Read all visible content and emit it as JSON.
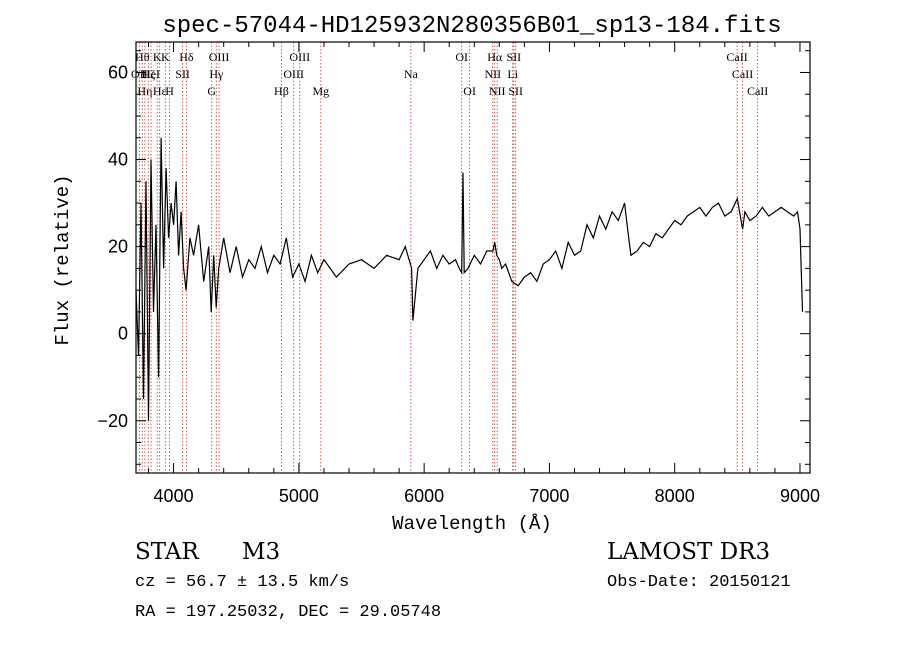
{
  "chart_data": {
    "type": "line",
    "title": "spec-57044-HD125932N280356B01_sp13-184.fits",
    "xlabel": "Wavelength (Å)",
    "ylabel": "Flux (relative)",
    "xlim": [
      3700,
      9080
    ],
    "ylim": [
      -32,
      67
    ],
    "grid": false,
    "x_ticks": [
      4000,
      5000,
      6000,
      7000,
      8000,
      9000
    ],
    "y_ticks": [
      -20,
      0,
      20,
      40,
      60
    ],
    "x_tick_labels": [
      "4000",
      "5000",
      "6000",
      "7000",
      "8000",
      "9000"
    ],
    "y_tick_labels": [
      "−20",
      "0",
      "20",
      "40",
      "60"
    ],
    "series": [
      {
        "x": [
          3700,
          3720,
          3740,
          3760,
          3780,
          3800,
          3820,
          3840,
          3860,
          3880,
          3900,
          3920,
          3940,
          3960,
          3980,
          4000,
          4020,
          4040,
          4060,
          4080,
          4100,
          4130,
          4160,
          4200,
          4240,
          4280,
          4300,
          4320,
          4340,
          4360,
          4400,
          4450,
          4500,
          4550,
          4600,
          4650,
          4700,
          4750,
          4800,
          4850,
          4900,
          4950,
          5000,
          5050,
          5100,
          5150,
          5200,
          5250,
          5300,
          5400,
          5500,
          5600,
          5700,
          5800,
          5850,
          5900,
          5910,
          5950,
          6000,
          6050,
          6100,
          6150,
          6200,
          6250,
          6280,
          6300,
          6310,
          6320,
          6350,
          6400,
          6450,
          6500,
          6550,
          6563,
          6580,
          6600,
          6620,
          6650,
          6700,
          6750,
          6800,
          6850,
          6900,
          6950,
          7000,
          7050,
          7100,
          7150,
          7200,
          7250,
          7300,
          7350,
          7400,
          7450,
          7500,
          7550,
          7600,
          7620,
          7650,
          7700,
          7750,
          7800,
          7850,
          7900,
          7950,
          8000,
          8050,
          8100,
          8150,
          8200,
          8250,
          8300,
          8350,
          8400,
          8450,
          8500,
          8542,
          8560,
          8600,
          8650,
          8700,
          8750,
          8800,
          8850,
          8900,
          8950,
          8980,
          9000,
          9020
        ],
        "y": [
          10,
          -5,
          30,
          -15,
          35,
          -20,
          40,
          5,
          25,
          -10,
          45,
          15,
          38,
          22,
          30,
          25,
          35,
          18,
          28,
          15,
          10,
          22,
          18,
          25,
          12,
          20,
          5,
          18,
          6,
          15,
          22,
          14,
          20,
          13,
          17,
          15,
          20,
          14,
          18,
          16,
          22,
          13,
          16,
          12,
          18,
          14,
          17,
          15,
          13,
          16,
          17,
          15,
          18,
          17,
          20,
          15,
          3,
          15,
          17,
          19,
          15,
          18,
          16,
          17,
          15,
          14,
          37,
          14,
          15,
          18,
          16,
          19,
          19,
          21,
          18,
          17,
          15,
          16,
          12,
          11,
          13,
          14,
          12,
          16,
          17,
          19,
          15,
          21,
          18,
          19,
          25,
          22,
          27,
          24,
          28,
          26,
          30,
          25,
          18,
          19,
          21,
          20,
          23,
          22,
          24,
          26,
          25,
          27,
          28,
          29,
          27,
          29,
          30,
          27,
          28,
          31,
          24,
          28,
          26,
          27,
          29,
          27,
          28,
          29,
          28,
          27,
          28,
          24,
          5
        ]
      }
    ],
    "line_annotations": [
      {
        "wave": 3727,
        "label": "OII",
        "row": 2
      },
      {
        "wave": 3750,
        "label": "Hθ",
        "row": 1
      },
      {
        "wave": 3771,
        "label": "Hη",
        "row": 3
      },
      {
        "wave": 3798,
        "label": "Hζ",
        "row": 2
      },
      {
        "wave": 3820,
        "label": "HeI",
        "row": 2
      },
      {
        "wave": 3869,
        "label": "K",
        "row": 1
      },
      {
        "wave": 3889,
        "label": "Hε",
        "row": 3
      },
      {
        "wave": 3934,
        "label": "K",
        "row": 1
      },
      {
        "wave": 3968,
        "label": "H",
        "row": 3
      },
      {
        "wave": 4072,
        "label": "SII",
        "row": 2
      },
      {
        "wave": 4102,
        "label": "Hδ",
        "row": 1
      },
      {
        "wave": 4304,
        "label": "G",
        "row": 3
      },
      {
        "wave": 4341,
        "label": "Hγ",
        "row": 2
      },
      {
        "wave": 4363,
        "label": "OIII",
        "row": 1
      },
      {
        "wave": 4861,
        "label": "Hβ",
        "row": 3
      },
      {
        "wave": 4959,
        "label": "OIII",
        "row": 2
      },
      {
        "wave": 5007,
        "label": "OIII",
        "row": 1
      },
      {
        "wave": 5175,
        "label": "Mg",
        "row": 3
      },
      {
        "wave": 5894,
        "label": "Na",
        "row": 2
      },
      {
        "wave": 6300,
        "label": "OI",
        "row": 1
      },
      {
        "wave": 6363,
        "label": "OI",
        "row": 3
      },
      {
        "wave": 6548,
        "label": "NII",
        "row": 2
      },
      {
        "wave": 6563,
        "label": "Hα",
        "row": 1
      },
      {
        "wave": 6583,
        "label": "NII",
        "row": 3
      },
      {
        "wave": 6707,
        "label": "Li",
        "row": 2
      },
      {
        "wave": 6716,
        "label": "SII",
        "row": 1
      },
      {
        "wave": 6731,
        "label": "SII",
        "row": 3
      },
      {
        "wave": 8498,
        "label": "CaII",
        "row": 1
      },
      {
        "wave": 8542,
        "label": "CaII",
        "row": 2
      },
      {
        "wave": 8662,
        "label": "CaII",
        "row": 3
      }
    ]
  },
  "info": {
    "object_type": "STAR",
    "subclass": "M3",
    "survey": "LAMOST DR3",
    "cz": "cz = 56.7 ± 13.5 km/s",
    "obs_date": "Obs-Date: 20150121",
    "coords": "RA = 197.25032, DEC =  29.05748"
  },
  "colors": {
    "spectrum": "#000000",
    "line_markers": "#c0392b",
    "axes": "#000000"
  }
}
